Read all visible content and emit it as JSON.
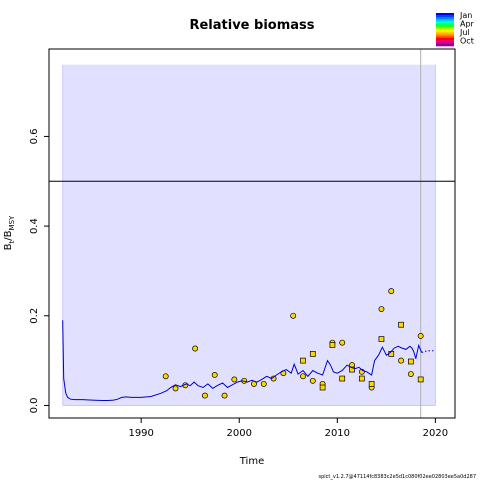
{
  "chart_data": {
    "type": "line",
    "title": "Relative biomass",
    "xlabel": "Time",
    "ylabel_main": "B",
    "ylabel_sub1": "t",
    "ylabel_mid": "/B",
    "ylabel_sub2": "MSY",
    "xlim": [
      1980.6,
      2022.0
    ],
    "ylim": [
      -0.028,
      0.795
    ],
    "x_ticks": [
      1990,
      2000,
      2010,
      2020
    ],
    "x_tick_labels": [
      "1990",
      "2000",
      "2010",
      "2020"
    ],
    "y_ticks": [
      0.0,
      0.2,
      0.4,
      0.6
    ],
    "y_tick_labels": [
      "0.0",
      "0.2",
      "0.4",
      "0.6"
    ],
    "ci_band": {
      "x_start": 1982.0,
      "x_end": 2020.0,
      "y_low": 0.0,
      "y_high": 0.76,
      "color": "#e1e1ff"
    },
    "reference_line_y": 0.5,
    "forecast_marker_x": 2018.5,
    "series": [
      {
        "style": "solid",
        "color": "#0000cc",
        "x": [
          1982.0,
          1982.1,
          1982.3,
          1982.5,
          1982.8,
          1983.2,
          1984,
          1985,
          1986,
          1986.6,
          1987.2,
          1987.6,
          1988,
          1988.5,
          1989,
          1990,
          1991,
          1992,
          1992.6,
          1993,
          1993.5,
          1994,
          1994.6,
          1995,
          1995.4,
          1995.8,
          1996.3,
          1996.8,
          1997.3,
          1997.8,
          1998.3,
          1998.8,
          1999.3,
          1999.8,
          2000.3,
          2000.8,
          2001.3,
          2001.8,
          2002.3,
          2002.8,
          2003.3,
          2003.8,
          2004.3,
          2004.8,
          2005.3,
          2005.6,
          2006,
          2006.5,
          2007,
          2007.5,
          2008,
          2008.5,
          2009,
          2009.3,
          2009.6,
          2010,
          2010.5,
          2011,
          2011.4,
          2011.8,
          2012.2,
          2012.6,
          2013,
          2013.5,
          2013.8,
          2014.2,
          2014.6,
          2015,
          2015.4,
          2015.8,
          2016.2,
          2016.6,
          2017,
          2017.4,
          2017.6,
          2017.8,
          2018,
          2018.3,
          2018.6
        ],
        "y": [
          0.19,
          0.06,
          0.028,
          0.018,
          0.014,
          0.013,
          0.013,
          0.012,
          0.011,
          0.011,
          0.012,
          0.014,
          0.018,
          0.019,
          0.018,
          0.018,
          0.02,
          0.027,
          0.033,
          0.04,
          0.046,
          0.042,
          0.048,
          0.044,
          0.052,
          0.044,
          0.04,
          0.048,
          0.038,
          0.045,
          0.05,
          0.04,
          0.046,
          0.052,
          0.055,
          0.052,
          0.056,
          0.052,
          0.058,
          0.065,
          0.06,
          0.068,
          0.075,
          0.08,
          0.072,
          0.092,
          0.07,
          0.078,
          0.065,
          0.078,
          0.072,
          0.068,
          0.1,
          0.09,
          0.075,
          0.072,
          0.078,
          0.09,
          0.085,
          0.082,
          0.085,
          0.078,
          0.075,
          0.068,
          0.1,
          0.112,
          0.13,
          0.112,
          0.118,
          0.128,
          0.132,
          0.128,
          0.125,
          0.132,
          0.128,
          0.12,
          0.104,
          0.134,
          0.118
        ]
      },
      {
        "style": "dotted",
        "color": "#0000cc",
        "x": [
          2018.6,
          2019.0,
          2019.5,
          2020.0
        ],
        "y": [
          0.118,
          0.121,
          0.122,
          0.122
        ]
      }
    ],
    "observations": {
      "fill": "#ffd700",
      "x": [
        1992.5,
        1993.5,
        1994.5,
        1995.5,
        1996.5,
        1997.5,
        1998.5,
        1999.5,
        2000.5,
        2001.5,
        2002.5,
        2003.5,
        2004.5,
        2005.5,
        2006.5,
        2007.5,
        2008.5,
        2009.5,
        2010.5,
        2011.5,
        2012.5,
        2013.5,
        2014.5,
        2015.5,
        2016.5,
        2017.5,
        2018.5
      ],
      "y": [
        0.065,
        0.038,
        0.045,
        0.127,
        0.022,
        0.068,
        0.022,
        0.058,
        0.055,
        0.048,
        0.048,
        0.06,
        0.072,
        0.2,
        0.065,
        0.055,
        0.048,
        0.14,
        0.14,
        0.09,
        0.075,
        0.04,
        0.215,
        0.255,
        0.1,
        0.07,
        0.155
      ],
      "x2": [
        2006.5,
        2007.5,
        2008.5,
        2009.5,
        2010.5,
        2011.5,
        2012.5,
        2013.5,
        2014.5,
        2015.5,
        2016.5,
        2017.5,
        2018.5
      ],
      "y2": [
        0.1,
        0.115,
        0.04,
        0.135,
        0.06,
        0.08,
        0.06,
        0.048,
        0.148,
        0.115,
        0.18,
        0.098,
        0.058
      ]
    },
    "legend": {
      "position": "top-right",
      "labels": [
        "Jan",
        "Apr",
        "Jul",
        "Oct"
      ],
      "colors": [
        "#0000ff",
        "#0044ff",
        "#0088ff",
        "#00ccff",
        "#00ffcc",
        "#00ff66",
        "#33ff00",
        "#99ff00",
        "#ffff00",
        "#ffcc00",
        "#ff9900",
        "#ff5500",
        "#ff0000",
        "#ff0066",
        "#cc0099",
        "#990099"
      ]
    },
    "footer": "spict_v1.2.7@47114fc8383c2e5d1c080f02ee02803ee5a0d287"
  }
}
